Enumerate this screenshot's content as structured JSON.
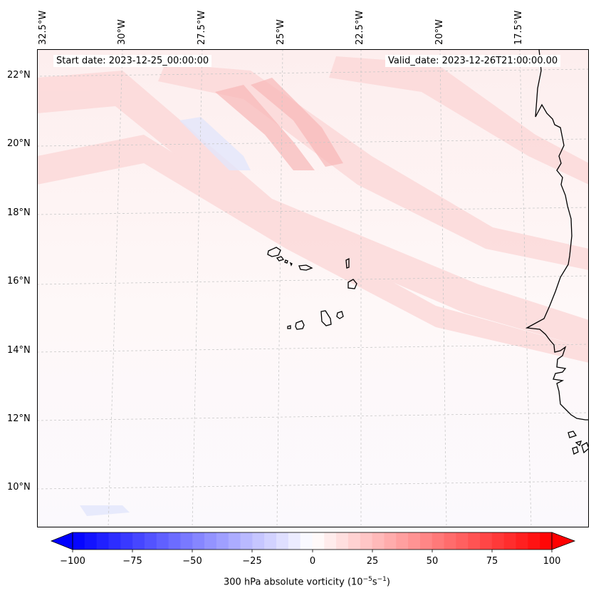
{
  "map": {
    "header": {
      "start_date": "Start date: 2023-12-25_00:00:00",
      "valid_date": "Valid_date: 2023-12-26T21:00:00.00"
    },
    "lon_labels": [
      "32.5°W",
      "30°W",
      "27.5°W",
      "25°W",
      "22.5°W",
      "20°W",
      "17.5°W"
    ],
    "lat_labels": [
      "22°N",
      "20°N",
      "18°N",
      "16°N",
      "14°N",
      "12°N",
      "10°N"
    ],
    "features": [
      "Cape Verde islands",
      "West African coastline"
    ]
  },
  "colorbar": {
    "ticks": [
      "−100",
      "−75",
      "−50",
      "−25",
      "0",
      "25",
      "50",
      "75",
      "100"
    ],
    "title_prefix": "300 hPa absolute vorticity (10",
    "title_exp1": "−5",
    "title_mid": "s",
    "title_exp2": "−1",
    "title_suffix": ")",
    "range": [
      -100,
      100
    ],
    "colormap": "bwr",
    "min_color": "#0000ff",
    "mid_color": "#ffffff",
    "max_color": "#ff0000"
  }
}
